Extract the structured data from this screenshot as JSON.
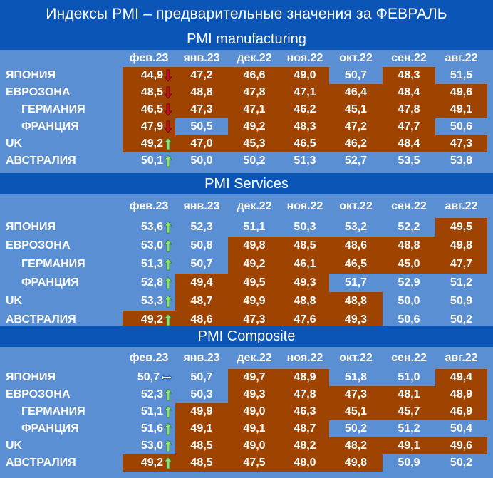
{
  "title": "Индексы PMI – предварительные значения за ФЕВРАЛЬ",
  "colors": {
    "brown": "#9e4400",
    "blue": "#5b8fd3",
    "header": "#0a55b5",
    "up": "#8ee07a",
    "down": "#c0101a",
    "flat": "#1a56a8"
  },
  "chart_data": [
    {
      "type": "table",
      "title": "PMI manufacturing",
      "columns": [
        "фев.23",
        "янв.23",
        "дек.22",
        "ноя.22",
        "окт.22",
        "сен.22",
        "авг.22"
      ],
      "rows": [
        {
          "label": "ЯПОНИЯ",
          "indent": false,
          "trend": "down",
          "values": [
            "44,9",
            "47,2",
            "46,6",
            "49,0",
            "50,7",
            "48,3",
            "51,5"
          ],
          "fill": [
            "brown",
            "brown",
            "brown",
            "brown",
            "blue",
            "brown",
            "blue"
          ]
        },
        {
          "label": "ЕВРОЗОНА",
          "indent": false,
          "trend": "down",
          "values": [
            "48,5",
            "48,8",
            "47,8",
            "47,1",
            "46,4",
            "48,4",
            "49,6"
          ],
          "fill": [
            "brown",
            "brown",
            "brown",
            "brown",
            "brown",
            "brown",
            "brown"
          ]
        },
        {
          "label": "ГЕРМАНИЯ",
          "indent": true,
          "trend": "down",
          "values": [
            "46,5",
            "47,3",
            "47,1",
            "46,2",
            "45,1",
            "47,8",
            "49,1"
          ],
          "fill": [
            "brown",
            "brown",
            "brown",
            "brown",
            "brown",
            "brown",
            "brown"
          ]
        },
        {
          "label": "ФРАНЦИЯ",
          "indent": true,
          "trend": "down",
          "values": [
            "47,9",
            "50,5",
            "49,2",
            "48,3",
            "47,2",
            "47,7",
            "50,6"
          ],
          "fill": [
            "brown",
            "blue",
            "brown",
            "brown",
            "brown",
            "brown",
            "blue"
          ]
        },
        {
          "label": "UK",
          "indent": false,
          "trend": "up",
          "values": [
            "49,2",
            "47,0",
            "45,3",
            "46,5",
            "46,2",
            "48,4",
            "47,3"
          ],
          "fill": [
            "brown",
            "brown",
            "brown",
            "brown",
            "brown",
            "brown",
            "brown"
          ]
        },
        {
          "label": "АВСТРАЛИЯ",
          "indent": false,
          "trend": "up",
          "values": [
            "50,1",
            "50,0",
            "50,2",
            "51,3",
            "52,7",
            "53,5",
            "53,8"
          ],
          "fill": [
            "blue",
            "blue",
            "blue",
            "blue",
            "blue",
            "blue",
            "blue"
          ]
        }
      ]
    },
    {
      "type": "table",
      "title": "PMI Services",
      "columns": [
        "фев.23",
        "янв.23",
        "дек.22",
        "ноя.22",
        "окт.22",
        "сен.22",
        "авг.22"
      ],
      "rows": [
        {
          "label": "ЯПОНИЯ",
          "indent": false,
          "trend": "up",
          "values": [
            "53,6",
            "52,3",
            "51,1",
            "50,3",
            "53,2",
            "52,2",
            "49,5"
          ],
          "fill": [
            "blue",
            "blue",
            "blue",
            "blue",
            "blue",
            "blue",
            "brown"
          ]
        },
        {
          "label": "ЕВРОЗОНА",
          "indent": false,
          "trend": "up",
          "values": [
            "53,0",
            "50,8",
            "49,8",
            "48,5",
            "48,6",
            "48,8",
            "49,8"
          ],
          "fill": [
            "blue",
            "blue",
            "brown",
            "brown",
            "brown",
            "brown",
            "brown"
          ]
        },
        {
          "label": "ГЕРМАНИЯ",
          "indent": true,
          "trend": "up",
          "values": [
            "51,3",
            "50,7",
            "49,2",
            "46,1",
            "46,5",
            "45,0",
            "47,7"
          ],
          "fill": [
            "blue",
            "blue",
            "brown",
            "brown",
            "brown",
            "brown",
            "brown"
          ]
        },
        {
          "label": "ФРАНЦИЯ",
          "indent": true,
          "trend": "up",
          "values": [
            "52,8",
            "49,4",
            "49,5",
            "49,3",
            "51,7",
            "52,9",
            "51,2"
          ],
          "fill": [
            "blue",
            "brown",
            "brown",
            "brown",
            "blue",
            "blue",
            "blue"
          ]
        },
        {
          "label": "UK",
          "indent": false,
          "trend": "up",
          "values": [
            "53,3",
            "48,7",
            "49,9",
            "48,8",
            "48,8",
            "50,0",
            "50,9"
          ],
          "fill": [
            "blue",
            "brown",
            "brown",
            "brown",
            "brown",
            "blue",
            "blue"
          ]
        },
        {
          "label": "АВСТРАЛИЯ",
          "indent": false,
          "trend": "up",
          "values": [
            "49,2",
            "48,6",
            "47,3",
            "47,6",
            "49,3",
            "50,6",
            "50,2"
          ],
          "fill": [
            "brown",
            "brown",
            "brown",
            "brown",
            "brown",
            "blue",
            "blue"
          ]
        }
      ]
    },
    {
      "type": "table",
      "title": "PMI Composite",
      "columns": [
        "фев.23",
        "янв.23",
        "дек.22",
        "ноя.22",
        "окт.22",
        "сен.22",
        "авг.22"
      ],
      "rows": [
        {
          "label": "ЯПОНИЯ",
          "indent": false,
          "trend": "flat",
          "values": [
            "50,7",
            "50,7",
            "49,7",
            "48,9",
            "51,8",
            "51,0",
            "49,4"
          ],
          "fill": [
            "blue",
            "blue",
            "brown",
            "brown",
            "blue",
            "blue",
            "brown"
          ]
        },
        {
          "label": "ЕВРОЗОНА",
          "indent": false,
          "trend": "up",
          "values": [
            "52,3",
            "50,3",
            "49,3",
            "47,8",
            "47,3",
            "48,1",
            "48,9"
          ],
          "fill": [
            "blue",
            "blue",
            "brown",
            "brown",
            "brown",
            "brown",
            "brown"
          ]
        },
        {
          "label": "ГЕРМАНИЯ",
          "indent": true,
          "trend": "up",
          "values": [
            "51,1",
            "49,9",
            "49,0",
            "46,3",
            "45,1",
            "45,7",
            "46,9"
          ],
          "fill": [
            "blue",
            "brown",
            "brown",
            "brown",
            "brown",
            "brown",
            "brown"
          ]
        },
        {
          "label": "ФРАНЦИЯ",
          "indent": true,
          "trend": "up",
          "values": [
            "51,6",
            "49,1",
            "49,1",
            "48,7",
            "50,2",
            "51,2",
            "50,4"
          ],
          "fill": [
            "blue",
            "brown",
            "brown",
            "brown",
            "blue",
            "blue",
            "blue"
          ]
        },
        {
          "label": "UK",
          "indent": false,
          "trend": "up",
          "values": [
            "53,0",
            "48,5",
            "49,0",
            "48,2",
            "48,2",
            "49,1",
            "49,6"
          ],
          "fill": [
            "blue",
            "brown",
            "brown",
            "brown",
            "brown",
            "brown",
            "brown"
          ]
        },
        {
          "label": "АВСТРАЛИЯ",
          "indent": false,
          "trend": "up",
          "values": [
            "49,2",
            "48,5",
            "47,5",
            "48,0",
            "49,8",
            "50,9",
            "50,2"
          ],
          "fill": [
            "brown",
            "brown",
            "brown",
            "brown",
            "brown",
            "blue",
            "blue"
          ]
        }
      ]
    }
  ]
}
